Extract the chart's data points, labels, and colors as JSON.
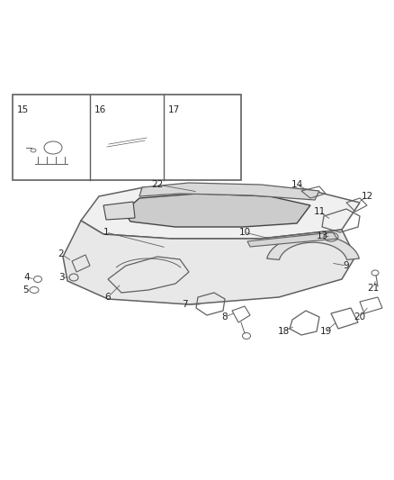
{
  "bg_color": "#ffffff",
  "line_color": "#606060",
  "label_color": "#222222",
  "fig_width": 4.38,
  "fig_height": 5.33,
  "dpi": 100
}
